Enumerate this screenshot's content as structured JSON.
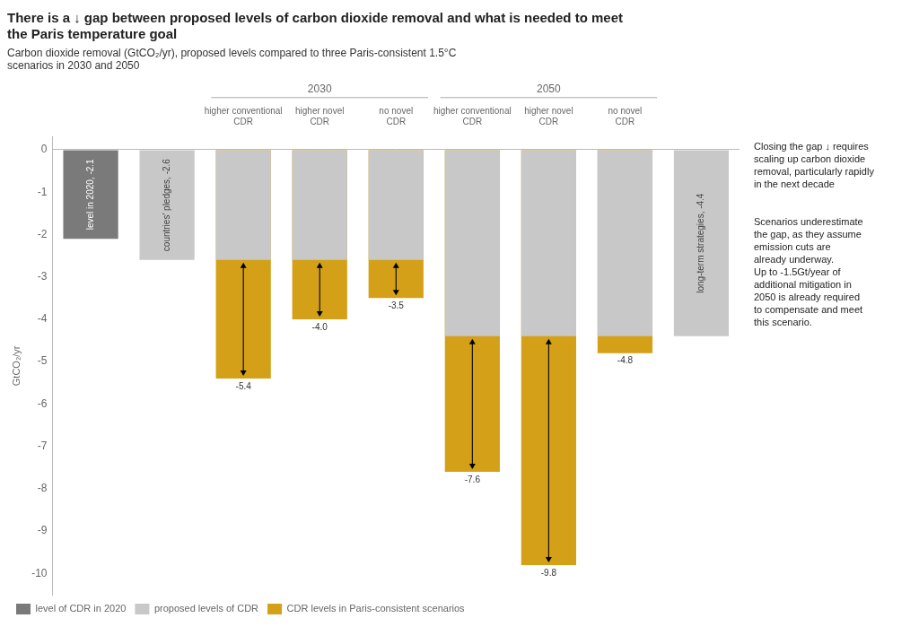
{
  "chart_data": {
    "type": "bar",
    "title": [
      "There is a ↓ gap between proposed levels of carbon dioxide removal and what is needed to meet",
      "the Paris temperature goal"
    ],
    "subtitle": [
      "Carbon dioxide removal (GtCO₂/yr), proposed levels compared to three Paris-consistent 1.5°C",
      "scenarios in 2030 and 2050"
    ],
    "y_label": "GtCO₂/yr",
    "categories": [
      null,
      null,
      "higher conventional\nCDR",
      "higher novel\nCDR",
      "no novel\nCDR",
      "higher conventional\nCDR",
      "higher novel\nCDR",
      "no novel\nCDR",
      null
    ],
    "category_groups": [
      null,
      null,
      "2030",
      "2030",
      "2030",
      "2050",
      "2050",
      "2050",
      null
    ],
    "series": [
      {
        "name": "level of CDR in 2020",
        "color": "#7a7a7a",
        "values": [
          -2.1,
          null,
          null,
          null,
          null,
          null,
          null,
          null,
          null
        ],
        "value_labels": [
          "level in 2020, -2.1",
          null,
          null,
          null,
          null,
          null,
          null,
          null,
          null
        ]
      },
      {
        "name": "proposed levels of CDR",
        "color": "#C8C8C8",
        "values": [
          null,
          -2.6,
          -2.6,
          -2.6,
          -2.6,
          -4.4,
          -4.4,
          -4.4,
          -4.4
        ],
        "value_labels": [
          null,
          "countries' pledges, -2.6",
          null,
          null,
          null,
          null,
          null,
          null,
          "long-term strategies, -4.4"
        ]
      },
      {
        "name": "CDR levels in Paris-consistent scenarios",
        "color": "#D4A017",
        "values": [
          null,
          null,
          -5.4,
          -4.0,
          -3.5,
          -7.6,
          -9.8,
          -4.8,
          null
        ],
        "value_labels": [
          null,
          null,
          "-5.4",
          "-4.0",
          "-3.5",
          "-7.6",
          "-9.8",
          "-4.8",
          null
        ]
      }
    ],
    "ylim": [
      -10.5,
      0.3
    ],
    "yticks": [
      0,
      -1,
      -2,
      -3,
      -4,
      -5,
      -6,
      -7,
      -8,
      -9,
      -10
    ],
    "grid": false,
    "legend": "lower left",
    "data_labels": true,
    "annotations": [
      "Closing the gap ↓ requires\nscaling up carbon dioxide\nremoval, particularly rapidly\nin the next decade",
      "Scenarios underestimate\nthe gap, as they assume\nemission cuts are\nalready underway.\nUp to -1.5Gt/year of\nadditional mitigation in\n2050 is already required\nto compensate and meet\nthis scenario."
    ]
  }
}
